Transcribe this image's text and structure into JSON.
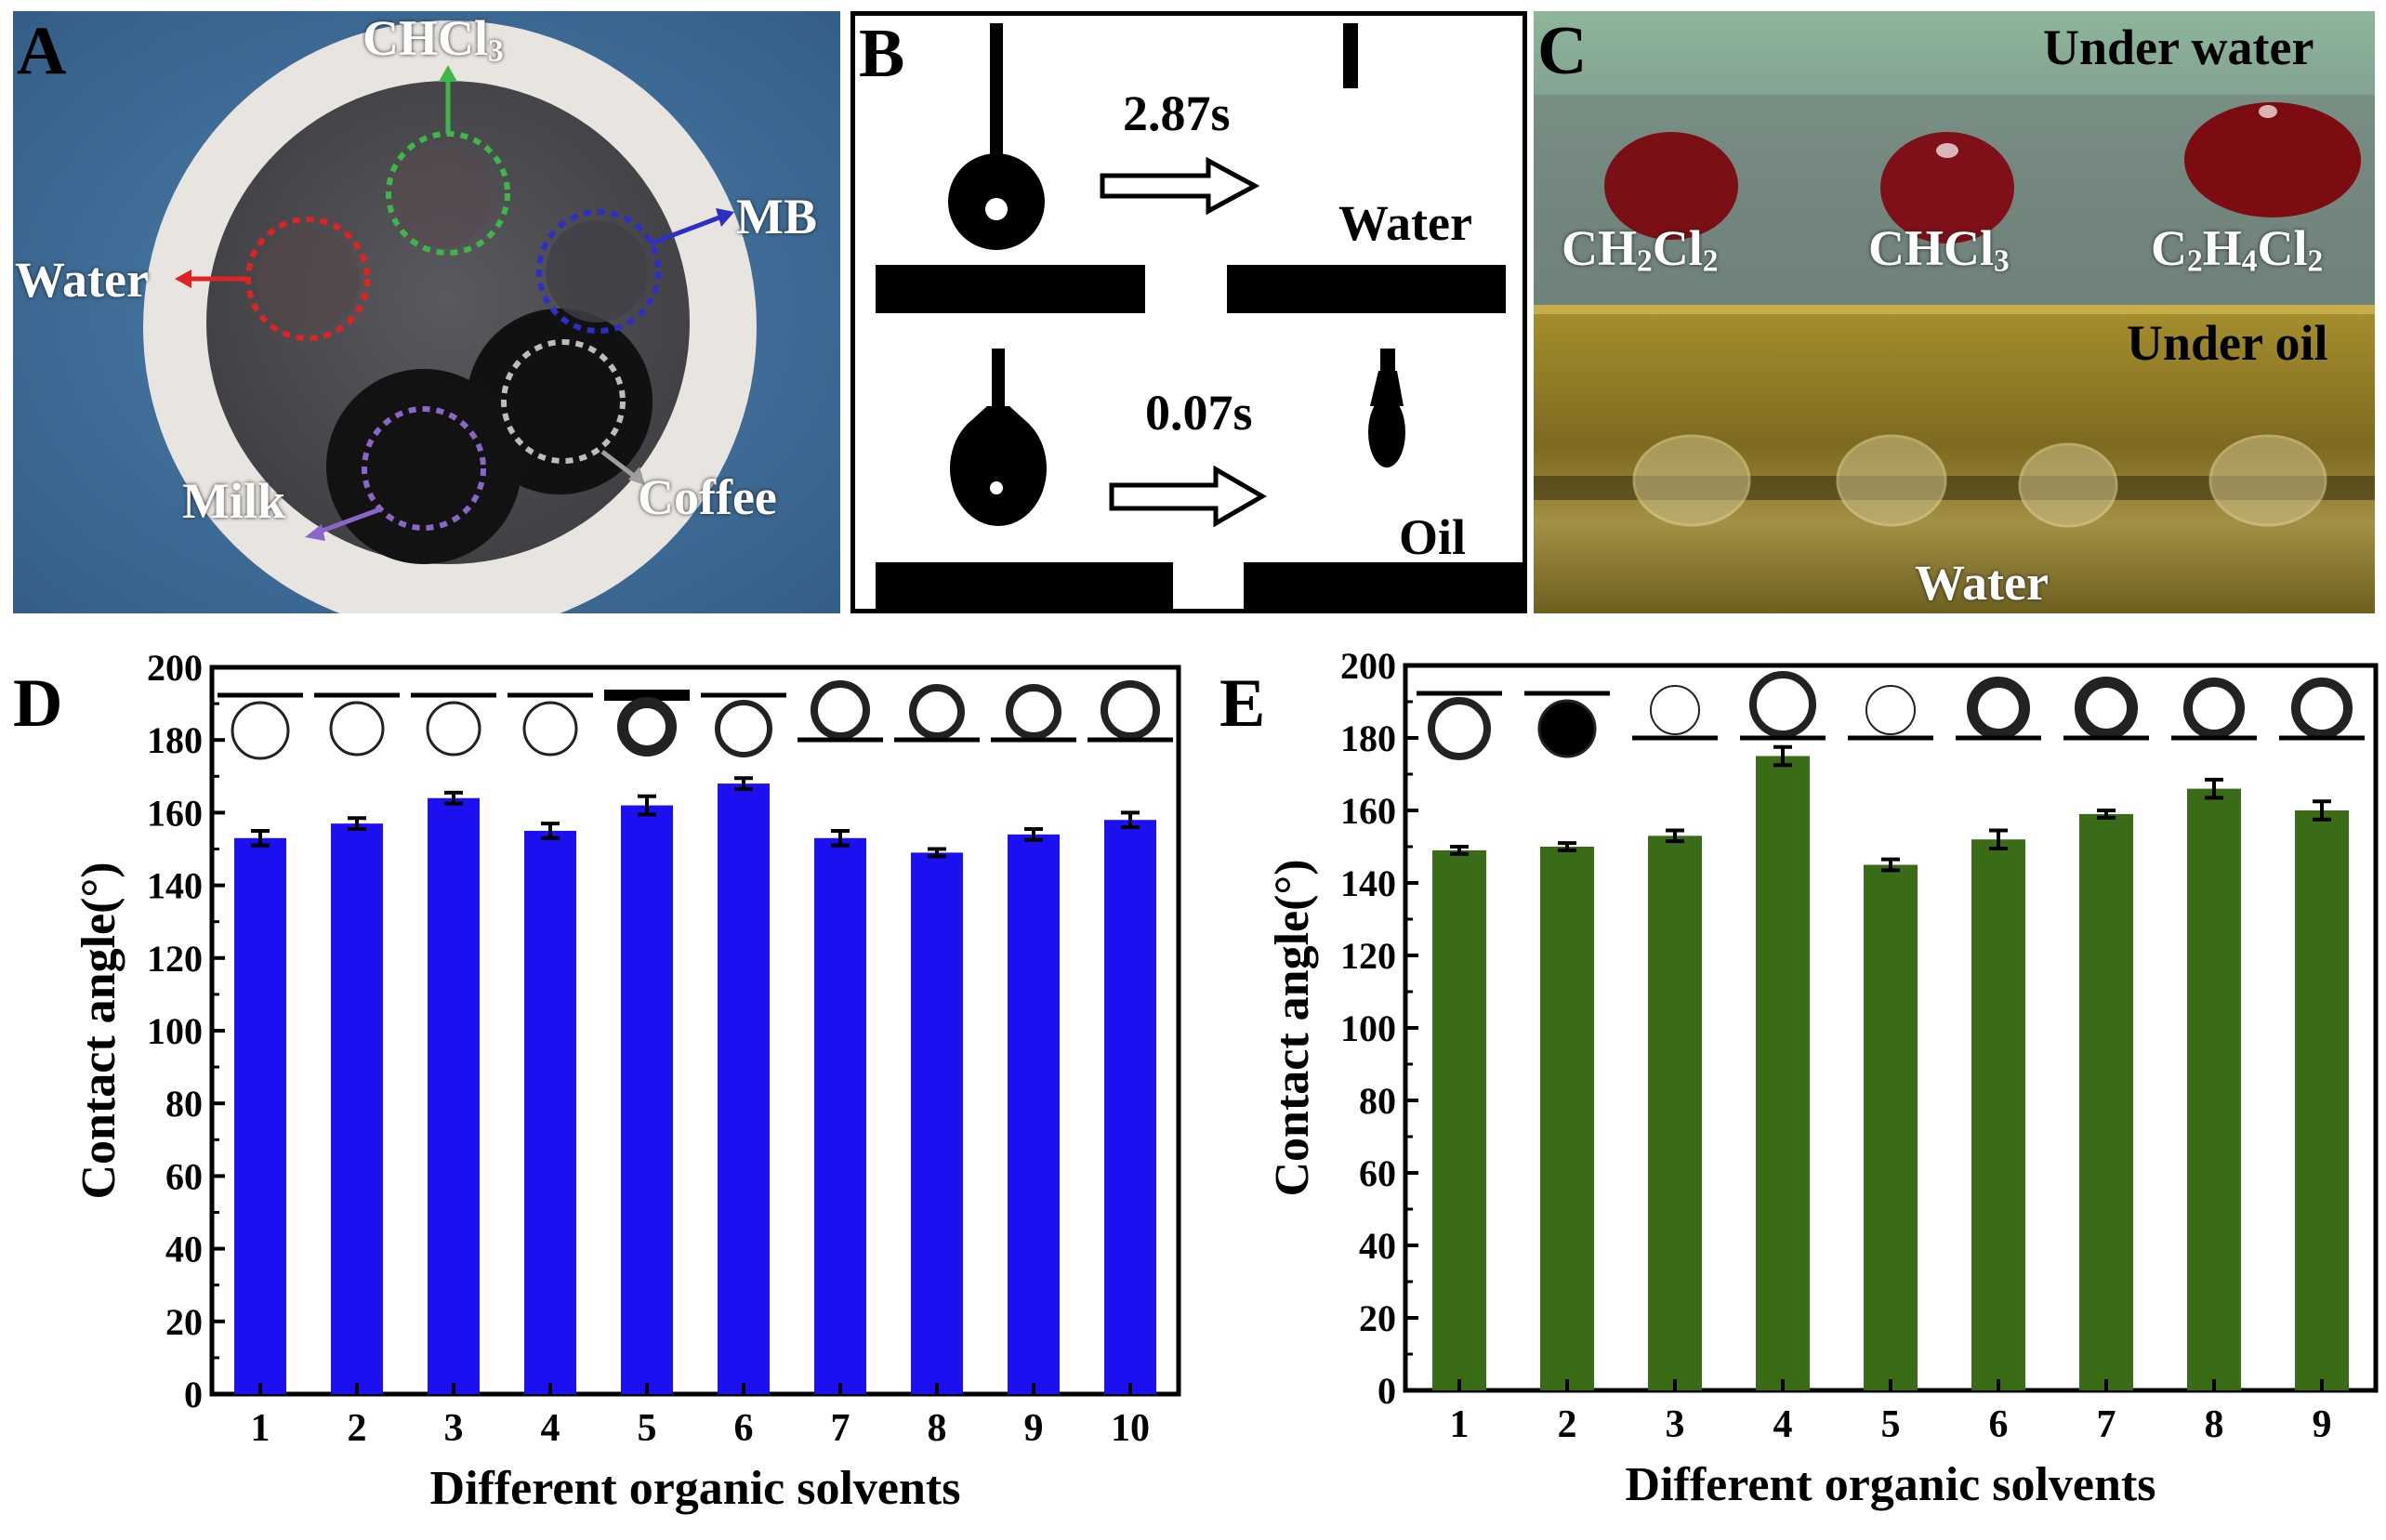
{
  "panel_a": {
    "letter": "A",
    "labels": {
      "chcl3": "CHCl",
      "chcl3_sub": "3",
      "mb": "MB",
      "water": "Water",
      "milk": "Milk",
      "coffee": "Coffee"
    },
    "colors": {
      "background": "#3f6f9b",
      "paper": "#e8e4e0",
      "membrane": "#4a4a4c",
      "green": "#3fb64a",
      "blue": "#2d2fc4",
      "red": "#e02222",
      "purple": "#8a66c8",
      "gray": "#bdbdbd"
    }
  },
  "panel_b": {
    "letter": "B",
    "time_water": "2.87s",
    "time_oil": "0.07s",
    "label_water": "Water",
    "label_oil": "Oil"
  },
  "panel_c": {
    "letter": "C",
    "under_water": "Under water",
    "under_oil": "Under oil",
    "water_bottom": "Water",
    "solvents": [
      {
        "base": "CH",
        "sub1": "2",
        "mid": "Cl",
        "sub2": "2"
      },
      {
        "base": "CHCl",
        "sub1": "3",
        "mid": "",
        "sub2": ""
      },
      {
        "base": "C",
        "sub1": "2",
        "mid": "H",
        "sub2": "4",
        "tail": "Cl",
        "sub3": "2"
      }
    ]
  },
  "chart_data": [
    {
      "panel": "D",
      "type": "bar",
      "categories": [
        "1",
        "2",
        "3",
        "4",
        "5",
        "6",
        "7",
        "8",
        "9",
        "10"
      ],
      "values": [
        153,
        157,
        164,
        155,
        162,
        168,
        153,
        149,
        154,
        158
      ],
      "errors": [
        2,
        1.5,
        1.5,
        2,
        2.5,
        1.5,
        2,
        1,
        1.5,
        2
      ],
      "xlabel": "Different organic solvents",
      "ylabel": "Contact angle(°)",
      "ylim": [
        0,
        200
      ],
      "yticks": [
        "0",
        "20",
        "40",
        "60",
        "80",
        "100",
        "120",
        "140",
        "160",
        "180",
        "200"
      ],
      "color": "#1c0ff0"
    },
    {
      "panel": "E",
      "type": "bar",
      "categories": [
        "1",
        "2",
        "3",
        "4",
        "5",
        "6",
        "7",
        "8",
        "9"
      ],
      "values": [
        149,
        150,
        153,
        175,
        145,
        152,
        159,
        166,
        160
      ],
      "errors": [
        1,
        1,
        1.5,
        2.5,
        1.5,
        2.5,
        1,
        2.5,
        2.5
      ],
      "xlabel": "Different organic solvents",
      "ylabel": "Contact angle(°)",
      "ylim": [
        0,
        200
      ],
      "yticks": [
        "0",
        "20",
        "40",
        "60",
        "80",
        "100",
        "120",
        "140",
        "160",
        "180",
        "200"
      ],
      "color": "#3a6b16"
    }
  ]
}
